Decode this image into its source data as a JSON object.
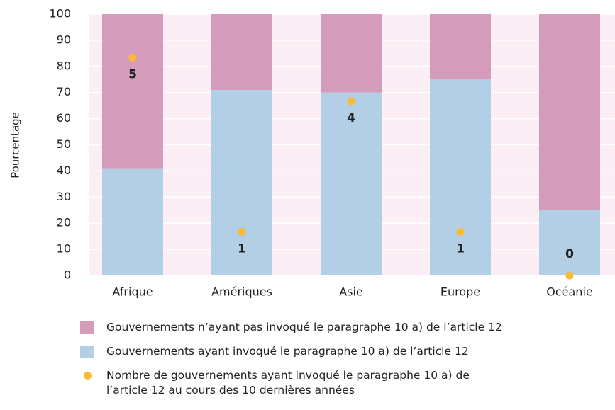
{
  "chart_data": {
    "type": "bar",
    "stacked": true,
    "ylabel": "Pourcentage",
    "categories": [
      "Afrique",
      "Amériques",
      "Asie",
      "Europe",
      "Océanie"
    ],
    "series": [
      {
        "name": "Gouvernements ayant invoqué le paragraphe 10 a) de l’article 12",
        "color": "#b3cfe6",
        "values": [
          41,
          71,
          70,
          75,
          25
        ]
      },
      {
        "name": "Gouvernements n’ayant pas invoqué le paragraphe 10 a) de l’article 12",
        "color": "#d49bbb",
        "values": [
          59,
          29,
          30,
          25,
          75
        ]
      },
      {
        "name": "Nombre de gouvernements ayant invoqué le paragraphe 10 a) de l’article 12 au cours des 10 dernières années",
        "color": "#fbb935",
        "type": "scatter",
        "axis": "y2",
        "values": [
          5,
          1,
          4,
          1,
          0
        ]
      }
    ],
    "ylim": [
      0,
      100
    ],
    "yticks": [
      0,
      10,
      20,
      30,
      40,
      50,
      60,
      70,
      80,
      90,
      100
    ],
    "y2lim": [
      0,
      6
    ],
    "grid": true,
    "background": "#fbeef4"
  }
}
